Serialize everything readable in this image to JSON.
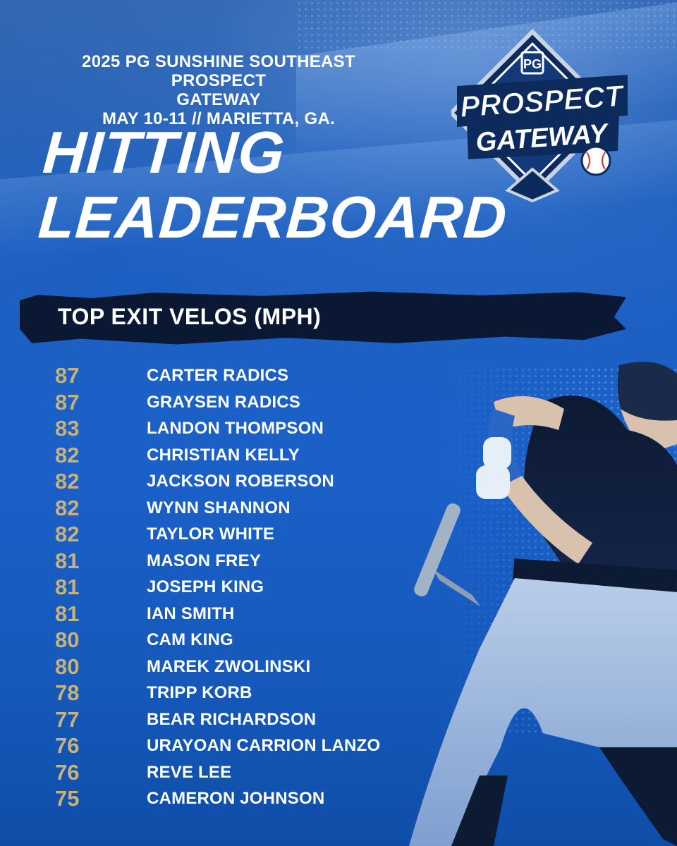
{
  "event": {
    "line1": "2025 PG Sunshine Southeast Prospect",
    "line2": "Gateway",
    "line3": "May 10-11 //  Marietta, GA."
  },
  "headline": {
    "line1": "Hitting",
    "line2": "Leaderboard"
  },
  "section_title": "TOP EXIT VELOS (MPH)",
  "logo": {
    "monogram": "PG",
    "word1": "PROSPECT",
    "word2": "GATEWAY",
    "icon": "baseball-diamond-logo"
  },
  "colors": {
    "background": "#1b60c8",
    "bar": "#0b1834",
    "velo_gold": "#c7b27a",
    "text": "#ffffff"
  },
  "leaderboard": [
    {
      "velo": "87",
      "name": "CARTER RADICS"
    },
    {
      "velo": "87",
      "name": "GRAYSEN RADICS"
    },
    {
      "velo": "83",
      "name": "LANDON THOMPSON"
    },
    {
      "velo": "82",
      "name": "CHRISTIAN KELLY"
    },
    {
      "velo": "82",
      "name": "JACKSON ROBERSON"
    },
    {
      "velo": "82",
      "name": "WYNN SHANNON"
    },
    {
      "velo": "82",
      "name": "TAYLOR WHITE"
    },
    {
      "velo": "81",
      "name": "MASON FREY"
    },
    {
      "velo": "81",
      "name": "JOSEPH KING"
    },
    {
      "velo": "81",
      "name": "IAN SMITH"
    },
    {
      "velo": "80",
      "name": "CAM KING"
    },
    {
      "velo": "80",
      "name": "MAREK ZWOLINSKI"
    },
    {
      "velo": "78",
      "name": "TRIPP KORB"
    },
    {
      "velo": "77",
      "name": "BEAR RICHARDSON"
    },
    {
      "velo": "76",
      "name": "URAYOAN CARRION LANZO"
    },
    {
      "velo": "76",
      "name": "REVE LEE"
    },
    {
      "velo": "75",
      "name": "CAMERON JOHNSON"
    }
  ]
}
